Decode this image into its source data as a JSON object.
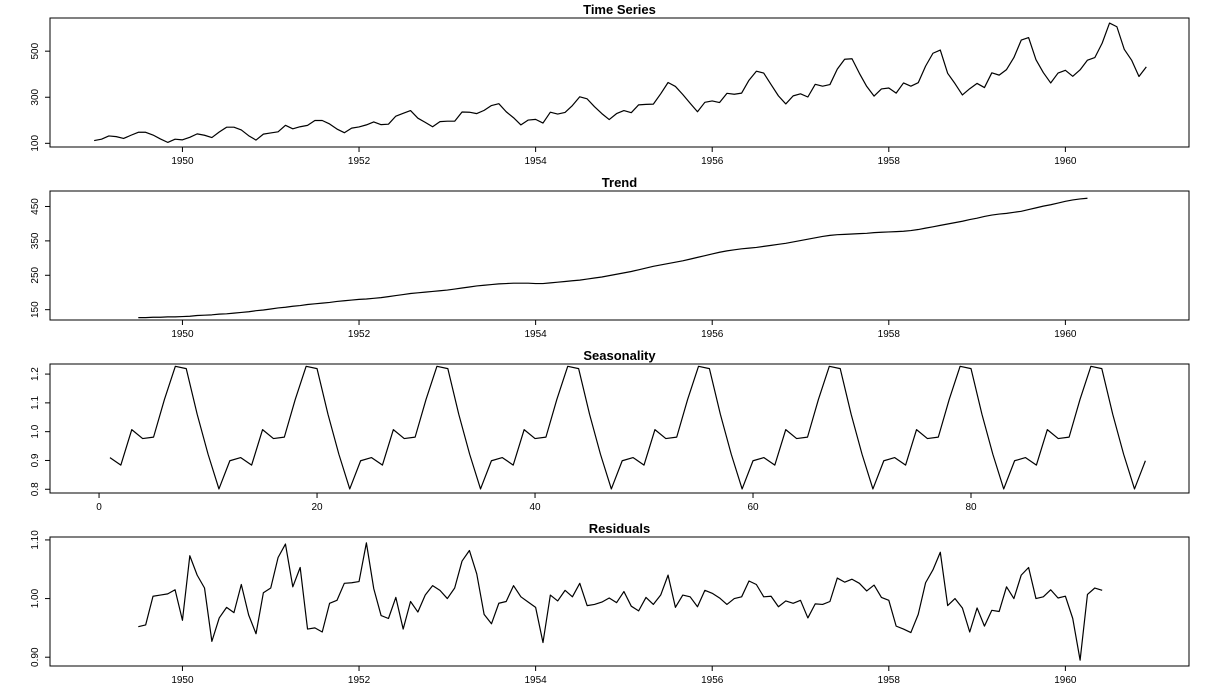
{
  "colors": {
    "line": "#000000",
    "background": "#ffffff",
    "axis": "#000000"
  },
  "chart_data": [
    {
      "type": "line",
      "title": "Time Series",
      "xlabel": "",
      "ylabel": "",
      "x_start": 1949.0,
      "x_step": 0.0833333,
      "xlim": [
        1948.5,
        1961.4
      ],
      "ylim": [
        84,
        644
      ],
      "x_ticks": [
        1950,
        1952,
        1954,
        1956,
        1958,
        1960
      ],
      "x_tick_labels": [
        "1950",
        "1952",
        "1954",
        "1956",
        "1958",
        "1960"
      ],
      "y_ticks": [
        100,
        300,
        500
      ],
      "y_tick_labels": [
        "100",
        "300",
        "500"
      ],
      "series": [
        {
          "values": [
            112,
            118,
            132,
            129,
            121,
            135,
            148,
            148,
            136,
            119,
            104,
            118,
            115,
            126,
            141,
            135,
            125,
            149,
            170,
            170,
            158,
            133,
            114,
            140,
            145,
            150,
            178,
            163,
            172,
            178,
            199,
            199,
            184,
            162,
            146,
            166,
            171,
            180,
            193,
            181,
            183,
            218,
            230,
            242,
            209,
            191,
            172,
            194,
            196,
            196,
            236,
            235,
            229,
            243,
            264,
            272,
            237,
            211,
            180,
            201,
            204,
            188,
            235,
            227,
            234,
            264,
            302,
            293,
            259,
            229,
            203,
            229,
            242,
            233,
            267,
            269,
            270,
            315,
            364,
            347,
            312,
            274,
            237,
            278,
            284,
            277,
            317,
            313,
            318,
            374,
            413,
            405,
            355,
            306,
            271,
            306,
            315,
            301,
            356,
            348,
            355,
            422,
            465,
            467,
            404,
            347,
            305,
            336,
            340,
            318,
            362,
            348,
            363,
            435,
            491,
            505,
            404,
            359,
            310,
            337,
            360,
            342,
            406,
            396,
            420,
            472,
            548,
            559,
            463,
            407,
            362,
            405,
            417,
            391,
            419,
            461,
            472,
            535,
            622,
            606,
            508,
            461,
            390,
            432
          ]
        }
      ]
    },
    {
      "type": "line",
      "title": "Trend",
      "xlabel": "",
      "ylabel": "",
      "x_start": 1949.5,
      "x_step": 0.0833333,
      "xlim": [
        1948.5,
        1961.4
      ],
      "ylim": [
        120,
        495
      ],
      "x_ticks": [
        1950,
        1952,
        1954,
        1956,
        1958,
        1960
      ],
      "x_tick_labels": [
        "1950",
        "1952",
        "1954",
        "1956",
        "1958",
        "1960"
      ],
      "y_ticks": [
        150,
        250,
        350,
        450
      ],
      "y_tick_labels": [
        "150",
        "250",
        "350",
        "450"
      ],
      "series": [
        {
          "values": [
            127,
            127,
            128,
            128,
            129,
            129,
            130,
            131,
            133,
            134,
            135,
            137,
            138,
            140,
            142,
            144,
            147,
            149,
            152,
            155,
            157,
            160,
            162,
            165,
            167,
            169,
            171,
            174,
            176,
            178,
            180,
            181,
            183,
            185,
            188,
            191,
            194,
            197,
            199,
            201,
            203,
            205,
            207,
            210,
            213,
            216,
            219,
            221,
            223,
            225,
            226,
            227,
            227,
            227,
            226,
            226,
            228,
            230,
            232,
            234,
            236,
            239,
            242,
            245,
            249,
            253,
            257,
            261,
            266,
            271,
            276,
            280,
            284,
            288,
            292,
            297,
            302,
            307,
            312,
            317,
            321,
            324,
            327,
            329,
            331,
            334,
            337,
            340,
            343,
            347,
            351,
            355,
            359,
            363,
            366,
            368,
            369,
            370,
            371,
            372,
            374,
            375,
            376,
            377,
            378,
            380,
            383,
            387,
            391,
            395,
            399,
            403,
            407,
            412,
            416,
            421,
            425,
            428,
            430,
            433,
            436,
            441,
            446,
            451,
            455,
            460,
            465,
            469,
            472,
            474
          ]
        }
      ]
    },
    {
      "type": "line",
      "title": "Seasonality",
      "xlabel": "",
      "ylabel": "",
      "x_start": 1,
      "x_step": 1,
      "xlim": [
        -4.5,
        100
      ],
      "ylim": [
        0.787,
        1.235
      ],
      "x_ticks": [
        0,
        20,
        40,
        60,
        80
      ],
      "x_tick_labels": [
        "0",
        "20",
        "40",
        "60",
        "80"
      ],
      "y_ticks": [
        0.8,
        0.9,
        1.0,
        1.1,
        1.2
      ],
      "y_tick_labels": [
        "0.8",
        "0.9",
        "1.0",
        "1.1",
        "1.2"
      ],
      "pattern": [
        0.91,
        0.884,
        1.007,
        0.976,
        0.981,
        1.112,
        1.227,
        1.219,
        1.061,
        0.922,
        0.801,
        0.899
      ],
      "length": 96
    },
    {
      "type": "line",
      "title": "Residuals",
      "xlabel": "",
      "ylabel": "",
      "x_start": 1949.5,
      "x_step": 0.0833333,
      "xlim": [
        1948.5,
        1961.4
      ],
      "ylim": [
        0.885,
        1.105
      ],
      "x_ticks": [
        1950,
        1952,
        1954,
        1956,
        1958,
        1960
      ],
      "x_tick_labels": [
        "1950",
        "1952",
        "1954",
        "1956",
        "1958",
        "1960"
      ],
      "y_ticks": [
        0.9,
        1.0,
        1.1
      ],
      "y_tick_labels": [
        "0.90",
        "1.00",
        "1.10"
      ],
      "series": [
        {
          "values": [
            0.952,
            0.955,
            1.004,
            1.006,
            1.008,
            1.015,
            0.963,
            1.073,
            1.04,
            1.018,
            0.927,
            0.967,
            0.985,
            0.976,
            1.024,
            0.972,
            0.94,
            1.01,
            1.018,
            1.07,
            1.093,
            1.02,
            1.053,
            0.948,
            0.95,
            0.943,
            0.992,
            0.997,
            1.026,
            1.027,
            1.029,
            1.095,
            1.017,
            0.971,
            0.966,
            1.002,
            0.948,
            0.995,
            0.977,
            1.006,
            1.022,
            1.014,
            1.0,
            1.018,
            1.064,
            1.082,
            1.042,
            0.973,
            0.957,
            0.992,
            0.995,
            1.022,
            1.003,
            0.994,
            0.985,
            0.925,
            1.006,
            0.996,
            1.014,
            1.003,
            1.026,
            0.988,
            0.99,
            0.994,
            1.001,
            0.993,
            1.012,
            0.987,
            0.979,
            1.002,
            0.99,
            1.006,
            1.04,
            0.985,
            1.006,
            1.003,
            0.986,
            1.014,
            1.009,
            1.001,
            0.99,
            1.0,
            1.003,
            1.03,
            1.024,
            1.003,
            1.004,
            0.986,
            0.996,
            0.992,
            0.997,
            0.967,
            0.991,
            0.99,
            0.995,
            1.035,
            1.028,
            1.033,
            1.026,
            1.013,
            1.023,
            1.002,
            0.997,
            0.953,
            0.948,
            0.942,
            0.973,
            1.027,
            1.049,
            1.079,
            0.988,
            1.0,
            0.984,
            0.943,
            0.984,
            0.953,
            0.98,
            0.978,
            1.02,
            1.0,
            1.04,
            1.053,
            1.0,
            1.003,
            1.015,
            1.001,
            1.004,
            0.966,
            0.895,
            1.007,
            1.018,
            1.014
          ]
        }
      ]
    }
  ]
}
